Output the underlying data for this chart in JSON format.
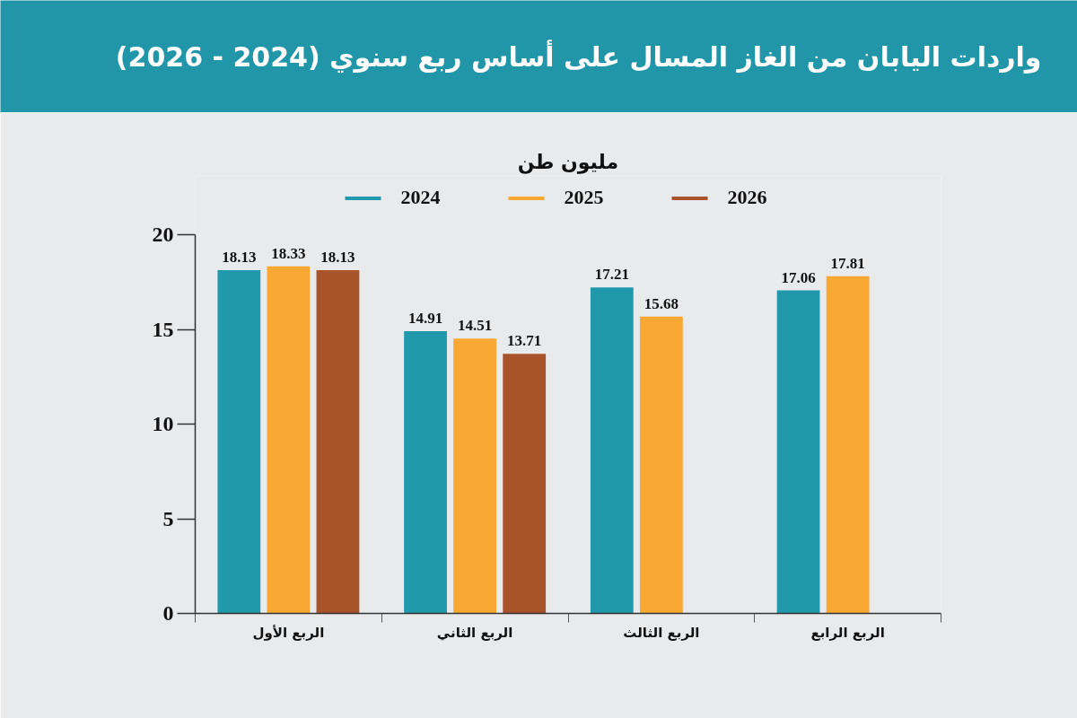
{
  "chart_data": {
    "type": "bar",
    "title": "واردات اليابان من الغاز المسال على أساس ربع سنوي (2024 - 2026)",
    "subtitle": "مليون طن",
    "categories": [
      "الربع الأول",
      "الربع الثاني",
      "الربع الثالث",
      "الربع الرابع"
    ],
    "series": [
      {
        "name": "2024",
        "color": "#2199ac",
        "values": [
          18.13,
          14.91,
          17.21,
          17.06
        ]
      },
      {
        "name": "2025",
        "color": "#f9a833",
        "values": [
          18.33,
          14.51,
          15.68,
          17.81
        ]
      },
      {
        "name": "2026",
        "color": "#a9532a",
        "values": [
          18.13,
          13.71,
          null,
          null
        ]
      }
    ],
    "ylim": [
      0,
      20
    ],
    "yticks": [
      0,
      5,
      10,
      15,
      20
    ],
    "data_labels": true,
    "legend": "top"
  }
}
